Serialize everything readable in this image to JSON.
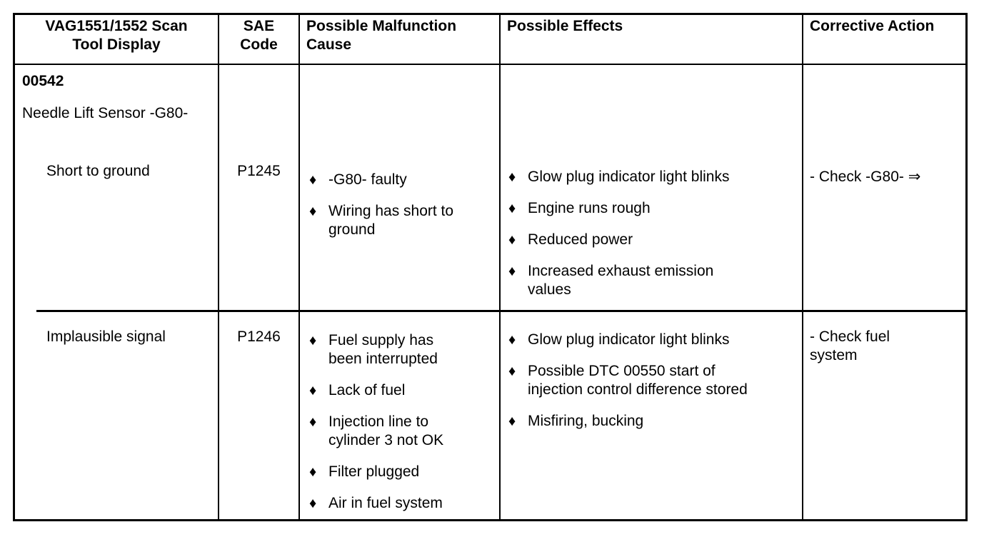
{
  "glyphs": {
    "bullet": "♦"
  },
  "table": {
    "headers": [
      "VAG1551/1552 Scan\nTool Display",
      "SAE\nCode",
      "Possible Malfunction\nCause",
      "Possible Effects",
      "Corrective Action"
    ],
    "dtc_code": "00542",
    "dtc_name": "Needle Lift Sensor -G80-",
    "rows": [
      {
        "display": "Short to ground",
        "sae_code": "P1245",
        "causes": [
          "-G80- faulty",
          "Wiring has short to\nground"
        ],
        "effects": [
          "Glow plug indicator light blinks",
          "Engine runs rough",
          "Reduced power",
          "Increased exhaust emission\nvalues"
        ],
        "corrective_action": "- Check -G80- ⇒"
      },
      {
        "display": "Implausible signal",
        "sae_code": "P1246",
        "causes": [
          "Fuel supply has\nbeen interrupted",
          "Lack of fuel",
          "Injection line to\ncylinder 3 not OK",
          "Filter plugged",
          "Air in fuel system"
        ],
        "effects": [
          "Glow plug indicator light blinks",
          "Possible DTC 00550 start of\ninjection control difference stored",
          "Misfiring, bucking"
        ],
        "corrective_action": "- Check fuel\nsystem"
      }
    ]
  }
}
